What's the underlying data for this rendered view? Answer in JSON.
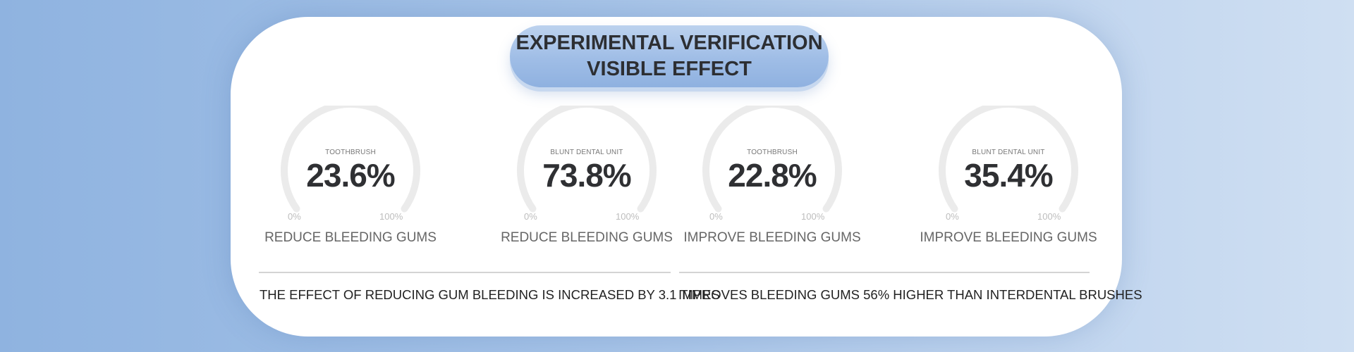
{
  "header": {
    "title_line1": "EXPERIMENTAL VERIFICATION",
    "title_line2": "VISIBLE EFFECT"
  },
  "gauges": [
    {
      "caption": "TOOTHBRUSH",
      "value": "23.6%",
      "percent": 23.6,
      "min": "0%",
      "max": "100%",
      "label": "REDUCE BLEEDING GUMS"
    },
    {
      "caption": "BLUNT DENTAL UNIT",
      "value": "73.8%",
      "percent": 73.8,
      "min": "0%",
      "max": "100%",
      "label": "REDUCE BLEEDING GUMS"
    },
    {
      "caption": "TOOTHBRUSH",
      "value": "22.8%",
      "percent": 22.8,
      "min": "0%",
      "max": "100%",
      "label": "IMPROVE BLEEDING GUMS"
    },
    {
      "caption": "BLUNT DENTAL UNIT",
      "value": "35.4%",
      "percent": 35.4,
      "min": "0%",
      "max": "100%",
      "label": "IMPROVE BLEEDING GUMS"
    }
  ],
  "summaries": [
    "THE EFFECT OF REDUCING GUM BLEEDING IS INCREASED BY 3.1 TIMES",
    "IMPROVES BLEEDING GUMS 56% HIGHER THAN INTERDENTAL BRUSHES"
  ],
  "colors": {
    "track": "#ebebeb",
    "text_dark": "#2f3033",
    "accent": "#9fbde6"
  }
}
